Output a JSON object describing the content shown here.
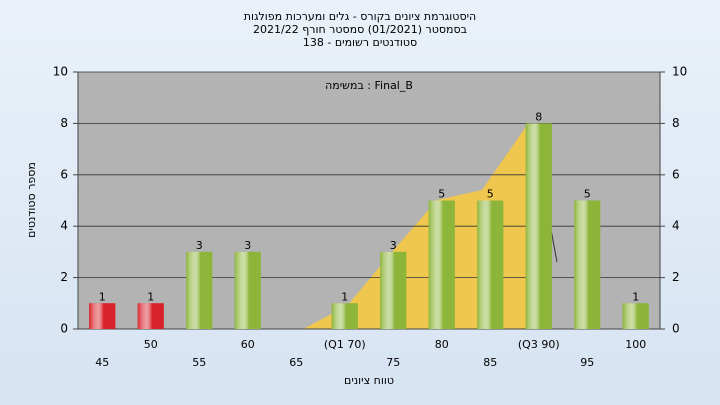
{
  "chart_data": {
    "type": "bar",
    "title": [
      "היסטוגרמת ציונים בקורס - גלים ומערכות מפולגות",
      "בסמסטר  (01/2021)  סמסטר חורף 2021/22",
      "סטודנטים רשומים - 138"
    ],
    "annotation": "במשימה : Final_B",
    "y_label": "מספר סטודנטים",
    "x_label": "טווח ציונים",
    "categories": [
      "45",
      "50",
      "55",
      "60",
      "65",
      "(Q1 70)",
      "75",
      "80",
      "85",
      "(Q3 90)",
      "95",
      "100"
    ],
    "values": [
      1,
      1,
      3,
      3,
      null,
      1,
      3,
      5,
      5,
      8,
      5,
      1
    ],
    "colors": [
      "#d8232b",
      "#d8232b",
      "#8db53a",
      "#8db53a",
      "#8db53a",
      "#8db53a",
      "#8db53a",
      "#8db53a",
      "#8db53a",
      "#8db53a",
      "#8db53a",
      "#8db53a"
    ],
    "ylim": [
      0,
      10
    ],
    "yticks": [
      0,
      2,
      4,
      6,
      8,
      10
    ],
    "y2lim": [
      0,
      10
    ],
    "y2ticks": [
      0,
      2,
      4,
      6,
      8,
      10
    ],
    "grid": true
  }
}
